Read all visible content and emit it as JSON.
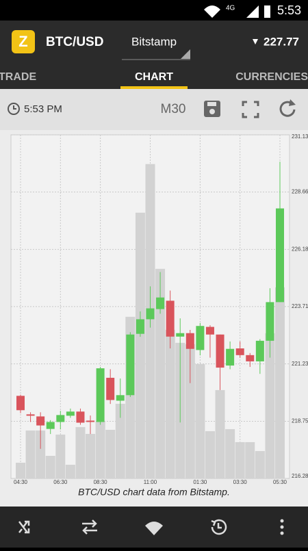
{
  "status_bar": {
    "network": "4G",
    "time": "5:53"
  },
  "header": {
    "logo": "Z",
    "pair": "BTC/USD",
    "exchange": "Bitstamp",
    "price": "227.77"
  },
  "tabs": [
    "TRADE",
    "CHART",
    "CURRENCIES"
  ],
  "toolbar": {
    "time": "5:53 PM",
    "interval": "M30"
  },
  "chart_data": {
    "type": "candlestick",
    "caption": "BTC/USD chart data from Bitstamp.",
    "categories": [
      "04:30",
      null,
      null,
      null,
      "06:30",
      null,
      null,
      null,
      "08:30",
      null,
      null,
      null,
      null,
      "11:00",
      null,
      null,
      null,
      null,
      "01:30",
      null,
      null,
      null,
      "03:30",
      null,
      null,
      null,
      "05:30"
    ],
    "open": [
      219.85,
      219.05,
      218.96,
      218.42,
      218.72,
      218.99,
      219.17,
      218.78,
      218.72,
      220.63,
      219.64,
      219.88,
      222.53,
      223.16,
      223.6,
      223.96,
      222.41,
      222.56,
      221.83,
      222.83,
      222.5,
      221.16,
      221.9,
      221.61,
      221.34,
      222.23,
      223.9
    ],
    "close": [
      219.23,
      218.99,
      218.57,
      218.72,
      219.02,
      219.17,
      218.69,
      218.72,
      221.04,
      219.67,
      219.88,
      222.5,
      223.16,
      223.63,
      224.1,
      222.41,
      222.56,
      221.88,
      222.87,
      222.5,
      221.07,
      221.88,
      221.61,
      221.34,
      222.23,
      223.9,
      227.95
    ],
    "high": [
      219.9,
      219.14,
      219.14,
      218.8,
      219.2,
      219.3,
      219.3,
      219.0,
      221.1,
      221.0,
      220.6,
      222.6,
      223.5,
      224.58,
      225.2,
      224.4,
      223.2,
      222.7,
      223.0,
      222.9,
      222.5,
      222.2,
      222.2,
      221.7,
      222.3,
      224.5,
      229.97
    ],
    "low": [
      219.1,
      218.72,
      217.56,
      218.2,
      218.4,
      218.9,
      218.6,
      218.2,
      218.6,
      219.5,
      218.9,
      219.8,
      222.4,
      222.8,
      223.4,
      221.9,
      218.7,
      220.4,
      221.6,
      221.5,
      220.1,
      221.0,
      221.5,
      221.1,
      220.8,
      221.5,
      223.9
    ],
    "volume": [
      23,
      70,
      70,
      33,
      64,
      20,
      75,
      65,
      83,
      71,
      109,
      236,
      388,
      459,
      306,
      217,
      198,
      196,
      167,
      69,
      129,
      72,
      53,
      53,
      40,
      212,
      279
    ],
    "up_color": "#5cc95a",
    "down_color": "#d9545c",
    "volume_color": "#d2d2d2",
    "ylim": [
      216.28,
      231.13
    ],
    "yticks": [
      216.28,
      218.75,
      221.23,
      223.71,
      226.18,
      228.66,
      231.13
    ],
    "grid": true
  }
}
